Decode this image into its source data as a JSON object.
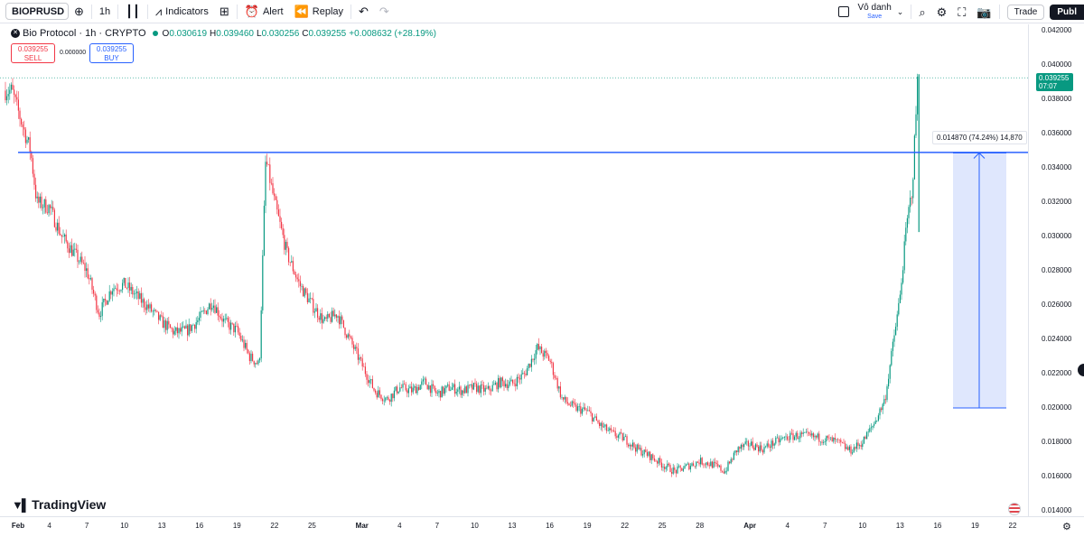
{
  "toolbar": {
    "symbol": "BIOPRUSD",
    "interval": "1h",
    "indicators_label": "Indicators",
    "alert_label": "Alert",
    "replay_label": "Replay",
    "layout_name": "Vô danh",
    "layout_save": "Save",
    "trade_label": "Trade",
    "publish_label": "Publ"
  },
  "legend": {
    "title": "Bio Protocol · 1h · CRYPTO",
    "open_key": "O",
    "open": "0.030619",
    "high_key": "H",
    "high": "0.039460",
    "low_key": "L",
    "low": "0.030256",
    "close_key": "C",
    "close": "0.039255",
    "change": "+0.008632 (+28.19%)"
  },
  "quote": {
    "sell_price": "0.039255",
    "sell_label": "SELL",
    "spread": "0.000000",
    "buy_price": "0.039255",
    "buy_label": "BUY"
  },
  "price_label": {
    "price": "0.039255",
    "countdown": "07:07"
  },
  "measure_label": "0.014870 (74.24%) 14,870",
  "brand": {
    "name": "TradingView"
  },
  "icons": [
    "add-symbol-icon",
    "compare-icon",
    "indicators-icon",
    "templates-icon",
    "alert-icon",
    "replay-icon",
    "undo-icon",
    "redo-icon",
    "layout-icon",
    "quick-search-icon",
    "settings-icon",
    "fullscreen-icon",
    "snapshot-icon",
    "flag-icon"
  ],
  "colors": {
    "up": "#089981",
    "down": "#f23645",
    "drawing": "#2962ff",
    "fill": "#dbe4fd"
  },
  "chart_data": {
    "type": "candlestick",
    "symbol": "BIOPRUSD",
    "interval": "1h",
    "y_axis_ticks": [
      0.042,
      0.04,
      0.038,
      0.036,
      0.034,
      0.032,
      0.03,
      0.028,
      0.026,
      0.024,
      0.022,
      0.02,
      0.018,
      0.016,
      0.014
    ],
    "y_axis_labels": [
      "0.042000",
      "0.040000",
      "0.038000",
      "0.036000",
      "0.034000",
      "0.032000",
      "0.030000",
      "0.028000",
      "0.026000",
      "0.024000",
      "0.022000",
      "0.020000",
      "0.018000",
      "0.016000",
      "0.014000"
    ],
    "ylim": [
      0.0135,
      0.0428
    ],
    "x_axis_labels": [
      {
        "label": "Feb",
        "bold": true
      },
      {
        "label": "4"
      },
      {
        "label": "7"
      },
      {
        "label": "10"
      },
      {
        "label": "13"
      },
      {
        "label": "16"
      },
      {
        "label": "19"
      },
      {
        "label": "22"
      },
      {
        "label": "25"
      },
      {
        "label": "Mar",
        "bold": true
      },
      {
        "label": "4"
      },
      {
        "label": "7"
      },
      {
        "label": "10"
      },
      {
        "label": "13"
      },
      {
        "label": "16"
      },
      {
        "label": "19"
      },
      {
        "label": "22"
      },
      {
        "label": "25"
      },
      {
        "label": "28"
      },
      {
        "label": "Apr",
        "bold": true
      },
      {
        "label": "4"
      },
      {
        "label": "7"
      },
      {
        "label": "10"
      },
      {
        "label": "13"
      },
      {
        "label": "16"
      },
      {
        "label": "19"
      },
      {
        "label": "22"
      }
    ],
    "path": [
      [
        0,
        0.0385
      ],
      [
        1.5,
        0.035
      ],
      [
        2,
        0.032
      ],
      [
        3,
        0.0317
      ],
      [
        4,
        0.03
      ],
      [
        5,
        0.029
      ],
      [
        6,
        0.028
      ],
      [
        7,
        0.0255
      ],
      [
        8,
        0.027
      ],
      [
        9,
        0.0272
      ],
      [
        10,
        0.0265
      ],
      [
        11,
        0.0258
      ],
      [
        12,
        0.025
      ],
      [
        13,
        0.0244
      ],
      [
        14,
        0.0245
      ],
      [
        15,
        0.0252
      ],
      [
        16,
        0.0262
      ],
      [
        17,
        0.025
      ],
      [
        18,
        0.0245
      ],
      [
        19,
        0.023
      ],
      [
        19.8,
        0.0225
      ],
      [
        20.3,
        0.0345
      ],
      [
        21,
        0.032
      ],
      [
        22,
        0.029
      ],
      [
        23,
        0.0272
      ],
      [
        24,
        0.026
      ],
      [
        25,
        0.025
      ],
      [
        26,
        0.0255
      ],
      [
        27,
        0.024
      ],
      [
        28,
        0.0225
      ],
      [
        29,
        0.021
      ],
      [
        30,
        0.0205
      ],
      [
        31,
        0.0212
      ],
      [
        32,
        0.021
      ],
      [
        33,
        0.0215
      ],
      [
        34,
        0.0208
      ],
      [
        35,
        0.0212
      ],
      [
        36,
        0.021
      ],
      [
        37,
        0.0212
      ],
      [
        38,
        0.021
      ],
      [
        39,
        0.0215
      ],
      [
        40,
        0.0214
      ],
      [
        41,
        0.022
      ],
      [
        42,
        0.0235
      ],
      [
        43,
        0.0228
      ],
      [
        44,
        0.0205
      ],
      [
        45,
        0.02
      ],
      [
        46,
        0.0198
      ],
      [
        47,
        0.019
      ],
      [
        48,
        0.0185
      ],
      [
        49,
        0.0182
      ],
      [
        50,
        0.0176
      ],
      [
        51,
        0.0172
      ],
      [
        52,
        0.0167
      ],
      [
        53,
        0.0163
      ],
      [
        54,
        0.0166
      ],
      [
        55,
        0.0169
      ],
      [
        56,
        0.0167
      ],
      [
        57,
        0.0163
      ],
      [
        58,
        0.0176
      ],
      [
        59,
        0.0179
      ],
      [
        60,
        0.0176
      ],
      [
        61,
        0.018
      ],
      [
        62,
        0.0183
      ],
      [
        63,
        0.0184
      ],
      [
        64,
        0.0183
      ],
      [
        65,
        0.0182
      ],
      [
        66,
        0.018
      ],
      [
        67,
        0.0175
      ],
      [
        68,
        0.018
      ],
      [
        69,
        0.0192
      ],
      [
        69.8,
        0.0205
      ],
      [
        70.5,
        0.024
      ],
      [
        71,
        0.0265
      ],
      [
        71.5,
        0.0305
      ],
      [
        72,
        0.033
      ],
      [
        72.4,
        0.0392
      ]
    ]
  }
}
